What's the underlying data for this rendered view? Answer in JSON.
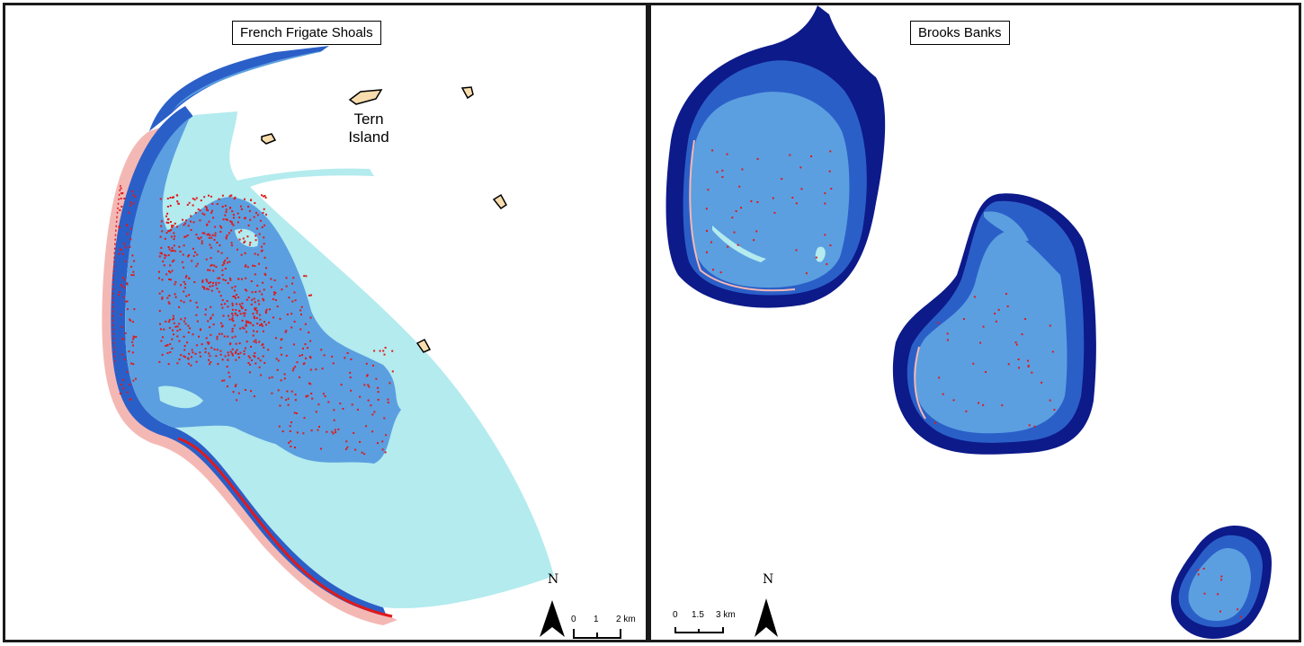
{
  "panels": {
    "left": {
      "title": "French Frigate Shoals",
      "island_label_line1": "Tern",
      "island_label_line2": "Island",
      "north_label": "N",
      "scale": {
        "ticks": [
          "0",
          "1",
          "2 km"
        ]
      }
    },
    "right": {
      "title": "Brooks Banks",
      "north_label": "N",
      "scale": {
        "ticks": [
          "0",
          "1.5",
          "3 km"
        ]
      }
    }
  },
  "colors": {
    "deep": "#0d1a8a",
    "mid": "#2b5fc8",
    "lagoon": "#5b9fe0",
    "shallow": "#b3ebee",
    "reef_pink": "#f4b8b4",
    "points": "#e0191b",
    "island": "#f7dcae",
    "frame": "#1a1a1a"
  },
  "icons": [
    "north-arrow-icon",
    "scale-bar-icon"
  ]
}
